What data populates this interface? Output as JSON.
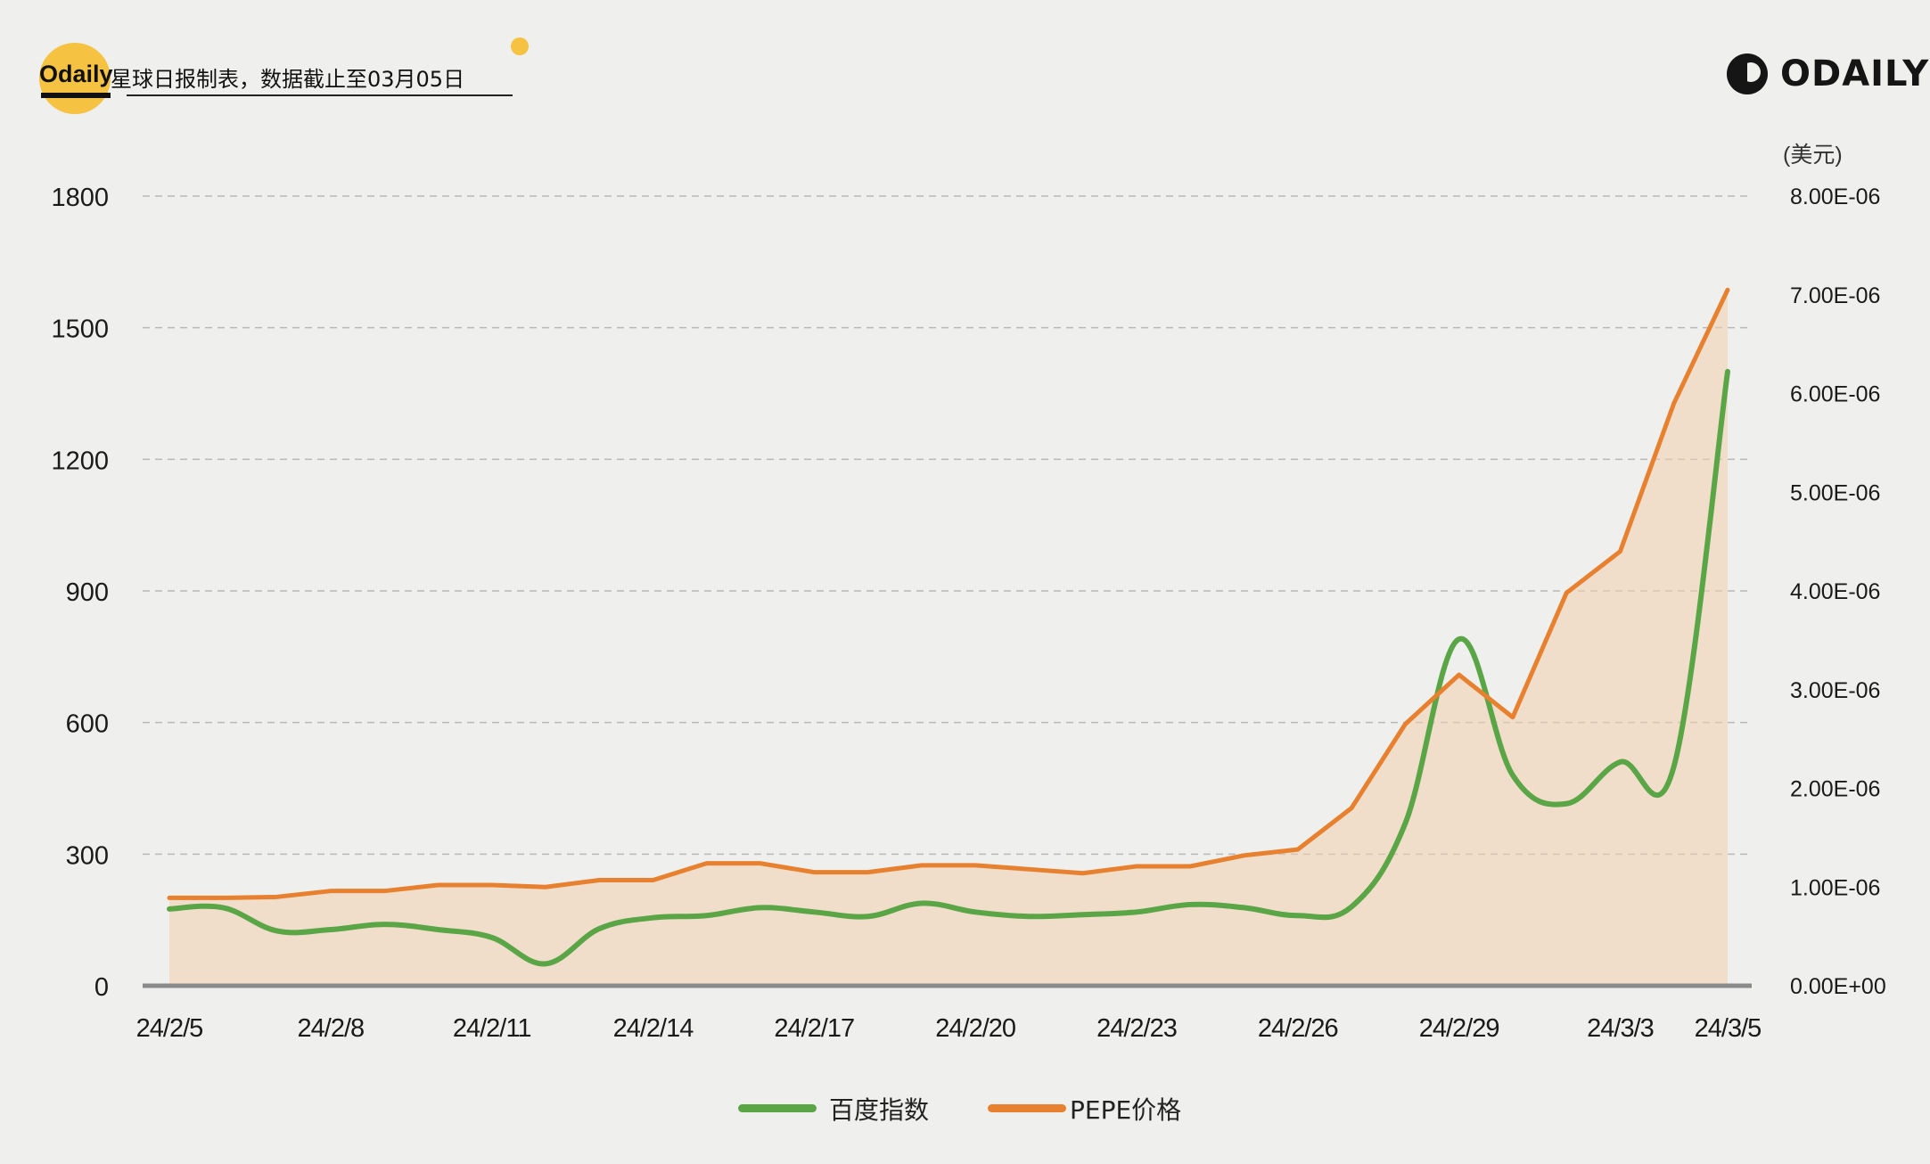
{
  "header": {
    "brand": "Odaily",
    "caption": "星球日报制表，数据截止至03月05日"
  },
  "logo": {
    "text": "ODAILY",
    "icon": "odaily-logo-icon"
  },
  "colors": {
    "baidu": "#5aa546",
    "pepe": "#e8812f",
    "area": "#f0cfae",
    "grid": "#b9b9b9",
    "axis": "#8a8a8a"
  },
  "chart_data": {
    "type": "line",
    "title": "",
    "x_tick_labels": [
      "24/2/5",
      "24/2/8",
      "24/2/11",
      "24/2/14",
      "24/2/17",
      "24/2/20",
      "24/2/23",
      "24/2/26",
      "24/2/29",
      "24/3/3",
      "24/3/5"
    ],
    "x": [
      "24/2/5",
      "24/2/6",
      "24/2/7",
      "24/2/8",
      "24/2/9",
      "24/2/10",
      "24/2/11",
      "24/2/12",
      "24/2/13",
      "24/2/14",
      "24/2/15",
      "24/2/16",
      "24/2/17",
      "24/2/18",
      "24/2/19",
      "24/2/20",
      "24/2/21",
      "24/2/22",
      "24/2/23",
      "24/2/24",
      "24/2/25",
      "24/2/26",
      "24/2/27",
      "24/2/28",
      "24/2/29",
      "24/3/1",
      "24/3/2",
      "24/3/3",
      "24/3/4",
      "24/3/5"
    ],
    "y_left": {
      "ticks": [
        0,
        300,
        600,
        900,
        1200,
        1500,
        1800
      ],
      "range": [
        0,
        1800
      ]
    },
    "y_right": {
      "unit": "(美元)",
      "ticks": [
        "0.00E+00",
        "1.00E-06",
        "2.00E-06",
        "3.00E-06",
        "4.00E-06",
        "5.00E-06",
        "6.00E-06",
        "7.00E-06",
        "8.00E-06"
      ],
      "range": [
        0,
        8e-06
      ]
    },
    "grid": true,
    "legend_position": "bottom",
    "series": [
      {
        "name": "百度指数",
        "axis": "left",
        "values": [
          175,
          178,
          125,
          128,
          140,
          128,
          110,
          50,
          130,
          155,
          160,
          178,
          168,
          158,
          188,
          168,
          158,
          162,
          168,
          185,
          178,
          160,
          180,
          370,
          790,
          480,
          415,
          510,
          500,
          1400
        ]
      },
      {
        "name": "PEPE价格",
        "axis": "right",
        "values": [
          8.9e-07,
          8.9e-07,
          9e-07,
          9.6e-07,
          9.6e-07,
          1.02e-06,
          1.02e-06,
          1e-06,
          1.07e-06,
          1.07e-06,
          1.24e-06,
          1.24e-06,
          1.15e-06,
          1.15e-06,
          1.22e-06,
          1.22e-06,
          1.18e-06,
          1.14e-06,
          1.21e-06,
          1.21e-06,
          1.32e-06,
          1.38e-06,
          1.8e-06,
          2.65e-06,
          3.15e-06,
          2.72e-06,
          3.98e-06,
          4.4e-06,
          5.9e-06,
          7.05e-06
        ]
      }
    ]
  },
  "legend": [
    {
      "name": "百度指数"
    },
    {
      "name": "PEPE价格"
    }
  ]
}
